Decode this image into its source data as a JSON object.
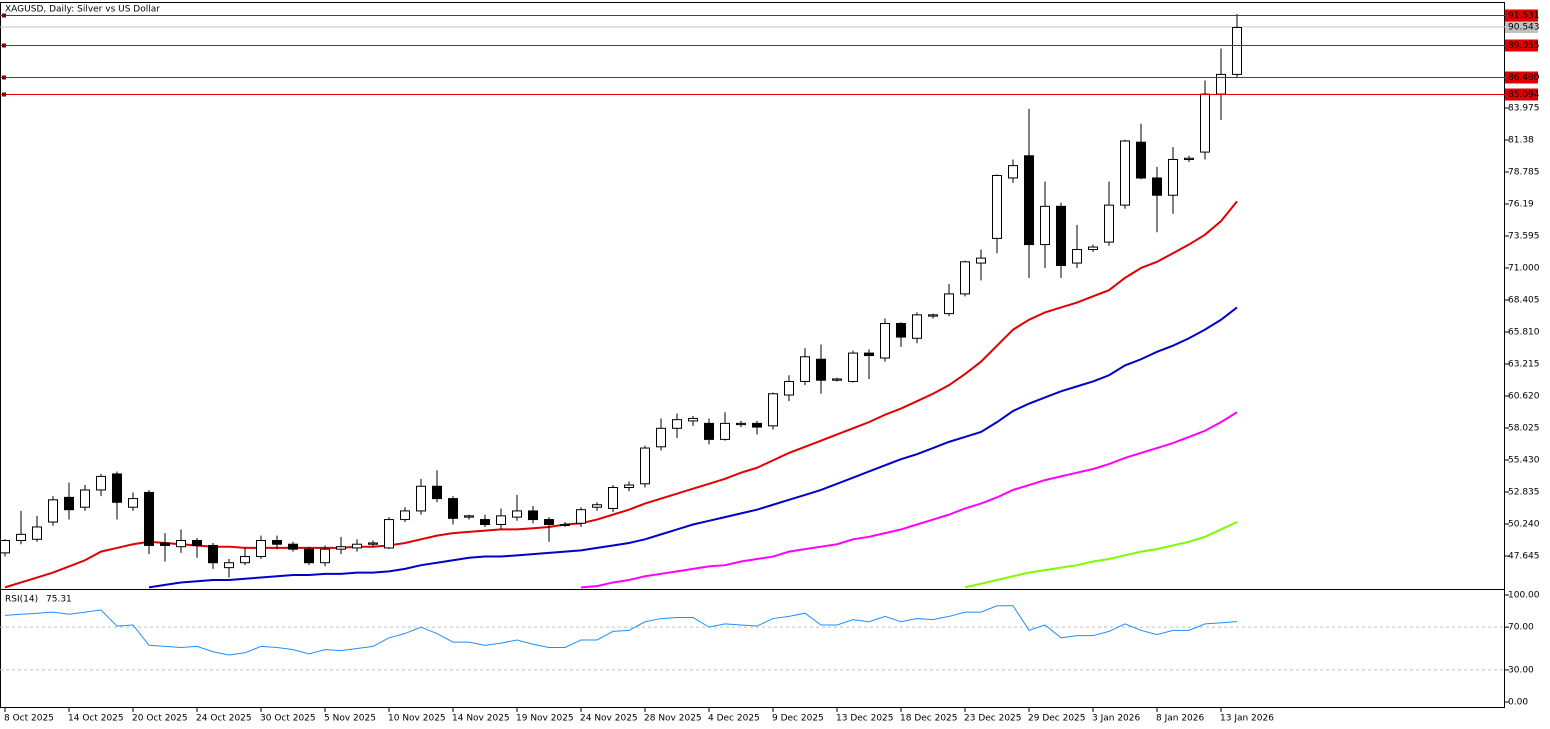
{
  "chart_data": [
    {
      "type": "candlestick",
      "title": "XAGUSD, Daily:  Silver vs US Dollar",
      "categories": [
        "8 Oct 2025",
        null,
        null,
        null,
        "14 Oct 2025",
        null,
        null,
        null,
        "20 Oct 2025",
        null,
        null,
        null,
        "24 Oct 2025",
        null,
        null,
        null,
        "30 Oct 2025",
        null,
        null,
        null,
        "5 Nov 2025",
        null,
        null,
        null,
        "10 Nov 2025",
        null,
        null,
        null,
        "14 Nov 2025",
        null,
        null,
        null,
        "19 Nov 2025",
        null,
        null,
        null,
        "24 Nov 2025",
        null,
        null,
        null,
        "28 Nov 2025",
        null,
        null,
        null,
        "4 Dec 2025",
        null,
        null,
        null,
        "9 Dec 2025",
        null,
        null,
        null,
        "13 Dec 2025",
        null,
        null,
        null,
        "18 Dec 2025",
        null,
        null,
        null,
        "23 Dec 2025",
        null,
        null,
        null,
        "29 Dec 2025",
        null,
        null,
        null,
        "3 Jan 2026",
        null,
        null,
        null,
        "8 Jan 2026",
        null,
        null,
        null,
        "13 Jan 2026",
        null
      ],
      "open": [
        47.9,
        48.9,
        49.0,
        50.4,
        52.4,
        51.6,
        53.0,
        54.3,
        51.6,
        52.8,
        48.7,
        48.4,
        48.9,
        48.5,
        46.7,
        47.1,
        47.6,
        48.9,
        48.6,
        48.2,
        47.1,
        48.2,
        48.3,
        48.6,
        48.3,
        50.6,
        51.3,
        53.3,
        52.3,
        50.8,
        50.6,
        50.2,
        50.8,
        51.3,
        50.6,
        50.2,
        50.3,
        51.6,
        51.5,
        53.2,
        53.5,
        56.5,
        58.0,
        58.6,
        58.4,
        57.1,
        58.3,
        58.4,
        58.2,
        60.7,
        61.8,
        63.6,
        61.9,
        61.8,
        64.1,
        63.7,
        66.5,
        65.3,
        67.1,
        67.3,
        68.9,
        71.4,
        73.4,
        78.3,
        80.1,
        72.9,
        76.0,
        71.4,
        72.5,
        73.1,
        76.1,
        81.2,
        78.3,
        76.9,
        79.8,
        80.4,
        85.1,
        86.7
      ],
      "high": [
        49.0,
        51.3,
        50.9,
        52.5,
        53.6,
        53.4,
        54.3,
        54.5,
        52.8,
        53.0,
        49.5,
        49.8,
        49.1,
        48.7,
        47.4,
        48.3,
        49.3,
        49.3,
        48.8,
        48.4,
        48.5,
        49.2,
        49.0,
        48.9,
        50.8,
        51.6,
        53.9,
        54.6,
        52.5,
        51.0,
        51.0,
        51.5,
        52.6,
        51.7,
        50.8,
        50.4,
        51.6,
        52.0,
        53.4,
        53.7,
        56.6,
        58.8,
        59.2,
        59.0,
        58.8,
        59.3,
        58.6,
        58.6,
        60.9,
        62.3,
        64.5,
        64.8,
        62.1,
        64.3,
        64.4,
        66.9,
        66.6,
        67.4,
        67.3,
        69.7,
        71.6,
        72.5,
        78.6,
        79.8,
        83.9,
        78.0,
        76.3,
        74.5,
        72.9,
        78.0,
        81.4,
        82.7,
        79.2,
        80.8,
        80.1,
        86.2,
        88.8,
        91.6
      ],
      "low": [
        47.6,
        48.6,
        48.8,
        50.1,
        50.6,
        51.3,
        52.5,
        50.6,
        51.3,
        47.8,
        47.2,
        47.9,
        47.5,
        46.6,
        45.9,
        46.9,
        47.4,
        48.2,
        48.0,
        46.9,
        46.8,
        47.8,
        48.0,
        48.4,
        48.2,
        50.4,
        51.0,
        52.0,
        50.2,
        50.6,
        50.0,
        49.8,
        50.5,
        50.3,
        48.8,
        50.0,
        50.0,
        51.3,
        51.2,
        52.9,
        53.2,
        56.2,
        57.2,
        58.2,
        56.7,
        57.0,
        58.1,
        57.5,
        57.9,
        60.2,
        61.5,
        60.8,
        61.8,
        61.7,
        62.0,
        63.4,
        64.6,
        64.9,
        66.9,
        67.1,
        68.7,
        70.0,
        72.2,
        77.9,
        70.2,
        71.0,
        70.2,
        71.0,
        72.3,
        72.8,
        75.8,
        78.2,
        73.9,
        75.4,
        79.6,
        79.8,
        83.0,
        86.4
      ],
      "close": [
        48.9,
        49.4,
        50.0,
        52.2,
        51.4,
        53.0,
        54.1,
        52.0,
        52.3,
        48.5,
        48.5,
        48.9,
        48.5,
        47.1,
        47.1,
        47.6,
        48.9,
        48.6,
        48.2,
        47.1,
        48.2,
        48.4,
        48.6,
        48.7,
        50.6,
        51.3,
        53.3,
        52.3,
        50.7,
        50.9,
        50.2,
        50.9,
        51.3,
        50.6,
        50.2,
        50.2,
        51.4,
        51.8,
        53.2,
        53.4,
        56.4,
        58.0,
        58.7,
        58.8,
        57.1,
        58.4,
        58.4,
        58.1,
        60.8,
        61.8,
        63.8,
        61.9,
        62.0,
        64.1,
        63.9,
        66.5,
        65.4,
        67.2,
        67.2,
        68.9,
        71.5,
        71.8,
        78.5,
        79.3,
        72.9,
        76.0,
        71.2,
        72.5,
        72.7,
        76.1,
        81.3,
        78.3,
        76.9,
        79.8,
        79.9,
        85.1,
        86.7,
        90.5
      ],
      "ma_lines": [
        {
          "color": "#e00000",
          "values": [
            45.1,
            45.5,
            45.9,
            46.3,
            46.8,
            47.3,
            48.0,
            48.3,
            48.6,
            48.8,
            48.7,
            48.6,
            48.5,
            48.4,
            48.4,
            48.3,
            48.3,
            48.3,
            48.3,
            48.3,
            48.3,
            48.3,
            48.4,
            48.4,
            48.5,
            48.7,
            49.0,
            49.3,
            49.5,
            49.6,
            49.7,
            49.8,
            49.8,
            49.9,
            50.0,
            50.2,
            50.3,
            50.6,
            51.0,
            51.4,
            51.9,
            52.3,
            52.7,
            53.1,
            53.5,
            53.9,
            54.4,
            54.8,
            55.4,
            56.0,
            56.5,
            57.0,
            57.5,
            58.0,
            58.5,
            59.1,
            59.6,
            60.2,
            60.8,
            61.5,
            62.4,
            63.4,
            64.7,
            66.0,
            66.8,
            67.4,
            67.8,
            68.2,
            68.7,
            69.2,
            70.2,
            71.0,
            71.5,
            72.2,
            72.9,
            73.7,
            74.8,
            76.4
          ]
        },
        {
          "color": "#0000c8",
          "values": [
            null,
            null,
            null,
            null,
            null,
            null,
            null,
            null,
            null,
            45.1,
            45.3,
            45.5,
            45.6,
            45.7,
            45.7,
            45.8,
            45.9,
            46.0,
            46.1,
            46.1,
            46.2,
            46.2,
            46.3,
            46.3,
            46.4,
            46.6,
            46.9,
            47.1,
            47.3,
            47.5,
            47.6,
            47.6,
            47.7,
            47.8,
            47.9,
            48.0,
            48.1,
            48.3,
            48.5,
            48.7,
            49.0,
            49.4,
            49.8,
            50.2,
            50.5,
            50.8,
            51.1,
            51.4,
            51.8,
            52.2,
            52.6,
            53.0,
            53.5,
            54.0,
            54.5,
            55.0,
            55.5,
            55.9,
            56.4,
            56.9,
            57.3,
            57.7,
            58.5,
            59.4,
            60.0,
            60.5,
            61.0,
            61.4,
            61.8,
            62.3,
            63.1,
            63.6,
            64.2,
            64.7,
            65.3,
            66.0,
            66.8,
            67.8
          ]
        },
        {
          "color": "#ff00ff",
          "values": [
            null,
            null,
            null,
            null,
            null,
            null,
            null,
            null,
            null,
            null,
            null,
            null,
            null,
            null,
            null,
            null,
            null,
            null,
            null,
            null,
            null,
            null,
            null,
            null,
            null,
            null,
            null,
            null,
            null,
            null,
            null,
            null,
            null,
            null,
            null,
            null,
            45.1,
            45.2,
            45.5,
            45.7,
            46.0,
            46.2,
            46.4,
            46.6,
            46.8,
            46.9,
            47.2,
            47.4,
            47.6,
            48.0,
            48.2,
            48.4,
            48.6,
            49.0,
            49.2,
            49.5,
            49.8,
            50.2,
            50.6,
            51.0,
            51.5,
            51.9,
            52.4,
            53.0,
            53.4,
            53.8,
            54.1,
            54.4,
            54.7,
            55.1,
            55.6,
            56.0,
            56.4,
            56.8,
            57.3,
            57.8,
            58.5,
            59.3
          ]
        },
        {
          "color": "#7cfc00",
          "values": [
            null,
            null,
            null,
            null,
            null,
            null,
            null,
            null,
            null,
            null,
            null,
            null,
            null,
            null,
            null,
            null,
            null,
            null,
            null,
            null,
            null,
            null,
            null,
            null,
            null,
            null,
            null,
            null,
            null,
            null,
            null,
            null,
            null,
            null,
            null,
            null,
            null,
            null,
            null,
            null,
            null,
            null,
            null,
            null,
            null,
            null,
            null,
            null,
            null,
            null,
            null,
            null,
            null,
            null,
            null,
            null,
            null,
            null,
            null,
            null,
            45.1,
            45.4,
            45.7,
            46.0,
            46.3,
            46.5,
            46.7,
            46.9,
            47.2,
            47.4,
            47.7,
            48.0,
            48.2,
            48.5,
            48.8,
            49.2,
            49.8,
            50.4
          ]
        }
      ],
      "ylim": [
        45.05,
        92.57
      ],
      "yticks": [
        83.975,
        81.38,
        78.785,
        76.19,
        73.595,
        {
          "value": 71,
          "label": "71.000"
        },
        68.405,
        {
          "value": 65.81,
          "label": "65.810"
        },
        63.215,
        {
          "value": 60.62,
          "label": "60.620"
        },
        58.025,
        {
          "value": 55.43,
          "label": "55.430"
        },
        52.835,
        {
          "value": 50.24,
          "label": "50.240"
        },
        47.645
      ],
      "levels": [
        91.531,
        89.055,
        {
          "value": 86.48,
          "label": "86.480"
        },
        85.094
      ],
      "level_color": "#e00000",
      "last_price": 90.543
    },
    {
      "type": "line",
      "title": "RSI(14)",
      "color": "#1e90ff",
      "values": [
        81,
        82,
        83,
        84,
        82,
        84,
        86,
        71,
        72,
        53,
        52,
        51,
        52,
        47,
        44,
        46,
        52,
        51,
        49,
        45,
        49,
        48,
        50,
        52,
        60,
        64,
        70,
        64,
        56,
        56,
        53,
        55,
        58,
        54,
        51,
        51,
        58,
        58,
        66,
        67,
        75,
        78,
        79,
        79,
        70,
        73,
        72,
        71,
        78,
        80,
        83,
        72,
        72,
        77,
        75,
        80,
        75,
        78,
        77,
        80,
        84,
        84,
        90,
        90,
        67,
        72,
        60,
        62,
        62,
        66,
        73,
        67,
        63,
        67,
        67,
        73,
        74,
        75.31
      ],
      "ylim": [
        -5.6,
        104.7
      ],
      "yticks": [
        {
          "value": 100,
          "label": "100.00"
        },
        {
          "value": 70,
          "label": "70.00"
        },
        {
          "value": 30,
          "label": "30.00"
        },
        {
          "value": 0,
          "label": "0.00"
        }
      ]
    }
  ]
}
